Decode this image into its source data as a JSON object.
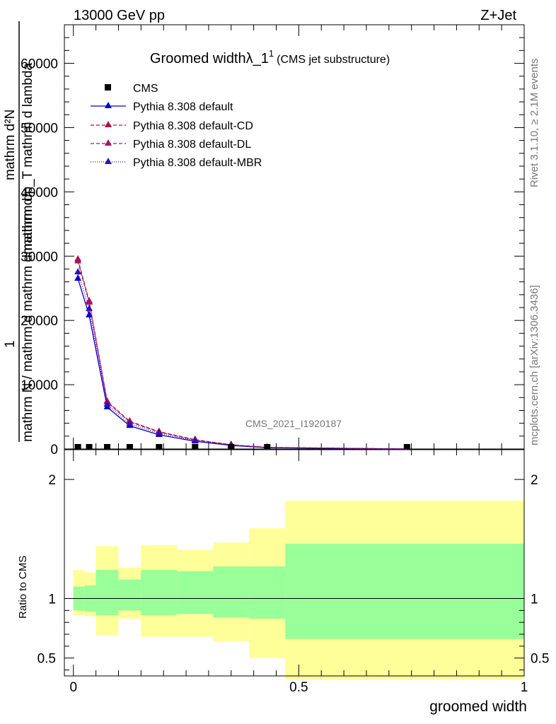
{
  "header": {
    "left": "13000 GeV pp",
    "right": "Z+Jet"
  },
  "side_text": {
    "rivet": "Rivet 3.1.10, ≥ 2.1M events",
    "source": "mcplots.cern.ch [arXiv:1306.3436]"
  },
  "chart_data": [
    {
      "type": "line",
      "title": "Groomed widthλ_1",
      "title_superscript": "1",
      "title_suffix": "(CMS jet substructure)",
      "analysis_tag": "CMS_2021_I1920187",
      "ylabel_numerator": "mathrm d²N",
      "ylabel_denominator_1": "mathrm d p_T mathrm d lambda",
      "ylabel_prefix": "1",
      "ylabel_denominator_2": "mathrm N / mathrm d mathrm d mathrm d",
      "ylim": [
        0,
        66000
      ],
      "xlim": [
        -0.02,
        1.0
      ],
      "yticks": [
        0,
        10000,
        20000,
        30000,
        40000,
        50000,
        60000
      ],
      "ytick_labels": [
        "0",
        "10000",
        "20000",
        "30000",
        "40000",
        "50000",
        "60000"
      ],
      "legend_position": "top-left",
      "cms": {
        "name": "CMS",
        "x": [
          0.01,
          0.035,
          0.075,
          0.125,
          0.19,
          0.27,
          0.35,
          0.43,
          0.74
        ],
        "y": [
          0,
          0,
          0,
          0,
          0,
          0,
          0,
          0,
          0
        ]
      },
      "series": [
        {
          "name": "Pythia 8.308 default",
          "color": "#0000cc",
          "dash": "",
          "x": [
            0.01,
            0.035,
            0.075,
            0.125,
            0.19,
            0.27,
            0.35,
            0.43,
            0.74
          ],
          "y": [
            26500,
            20800,
            6500,
            3600,
            2200,
            1200,
            550,
            200,
            0
          ]
        },
        {
          "name": "Pythia 8.308 default-CD",
          "color": "#aa1144",
          "dash": "5,3",
          "x": [
            0.01,
            0.035,
            0.075,
            0.125,
            0.19,
            0.27,
            0.35,
            0.43,
            0.74
          ],
          "y": [
            29500,
            23000,
            7400,
            4300,
            2700,
            1450,
            650,
            250,
            0
          ]
        },
        {
          "name": "Pythia 8.308 default-DL",
          "color": "#aa1166",
          "dash": "5,3",
          "x": [
            0.01,
            0.035,
            0.075,
            0.125,
            0.19,
            0.27,
            0.35,
            0.43,
            0.74
          ],
          "y": [
            29200,
            22800,
            7300,
            4200,
            2650,
            1400,
            640,
            240,
            0
          ]
        },
        {
          "name": "Pythia 8.308 default-MBR",
          "color": "#3311aa",
          "dash": "1,2",
          "x": [
            0.01,
            0.035,
            0.075,
            0.125,
            0.19,
            0.27,
            0.35,
            0.43,
            0.74
          ],
          "y": [
            27500,
            21800,
            6900,
            3900,
            2450,
            1300,
            600,
            220,
            0
          ]
        }
      ]
    },
    {
      "type": "area",
      "ylabel": "Ratio to CMS",
      "xlabel": "groomed width",
      "ylim": [
        0.35,
        2.25
      ],
      "xlim": [
        -0.02,
        1.0
      ],
      "yticks": [
        0.5,
        1,
        2
      ],
      "ytick_labels": [
        "0.5",
        "1",
        "2"
      ],
      "xticks": [
        0,
        0.5,
        1
      ],
      "xtick_labels": [
        "0",
        "0.5",
        "1"
      ],
      "bins": [
        {
          "x0": 0.0,
          "x1": 0.025,
          "stat_lo": 0.9,
          "stat_hi": 1.1,
          "tot_lo": 0.86,
          "tot_hi": 1.24
        },
        {
          "x0": 0.025,
          "x1": 0.05,
          "stat_lo": 0.89,
          "stat_hi": 1.11,
          "tot_lo": 0.85,
          "tot_hi": 1.22
        },
        {
          "x0": 0.05,
          "x1": 0.1,
          "stat_lo": 0.86,
          "stat_hi": 1.24,
          "tot_lo": 0.69,
          "tot_hi": 1.44
        },
        {
          "x0": 0.1,
          "x1": 0.15,
          "stat_lo": 0.9,
          "stat_hi": 1.16,
          "tot_lo": 0.83,
          "tot_hi": 1.26
        },
        {
          "x0": 0.15,
          "x1": 0.23,
          "stat_lo": 0.86,
          "stat_hi": 1.24,
          "tot_lo": 0.68,
          "tot_hi": 1.45
        },
        {
          "x0": 0.23,
          "x1": 0.31,
          "stat_lo": 0.87,
          "stat_hi": 1.23,
          "tot_lo": 0.68,
          "tot_hi": 1.41
        },
        {
          "x0": 0.31,
          "x1": 0.39,
          "stat_lo": 0.84,
          "stat_hi": 1.27,
          "tot_lo": 0.64,
          "tot_hi": 1.47
        },
        {
          "x0": 0.39,
          "x1": 0.47,
          "stat_lo": 0.83,
          "stat_hi": 1.27,
          "tot_lo": 0.5,
          "tot_hi": 1.59
        },
        {
          "x0": 0.47,
          "x1": 1.0,
          "stat_lo": 0.66,
          "stat_hi": 1.46,
          "tot_lo": 0.32,
          "tot_hi": 1.82
        }
      ],
      "colors": {
        "stat": "#99ff99",
        "total": "#ffff99"
      }
    }
  ]
}
